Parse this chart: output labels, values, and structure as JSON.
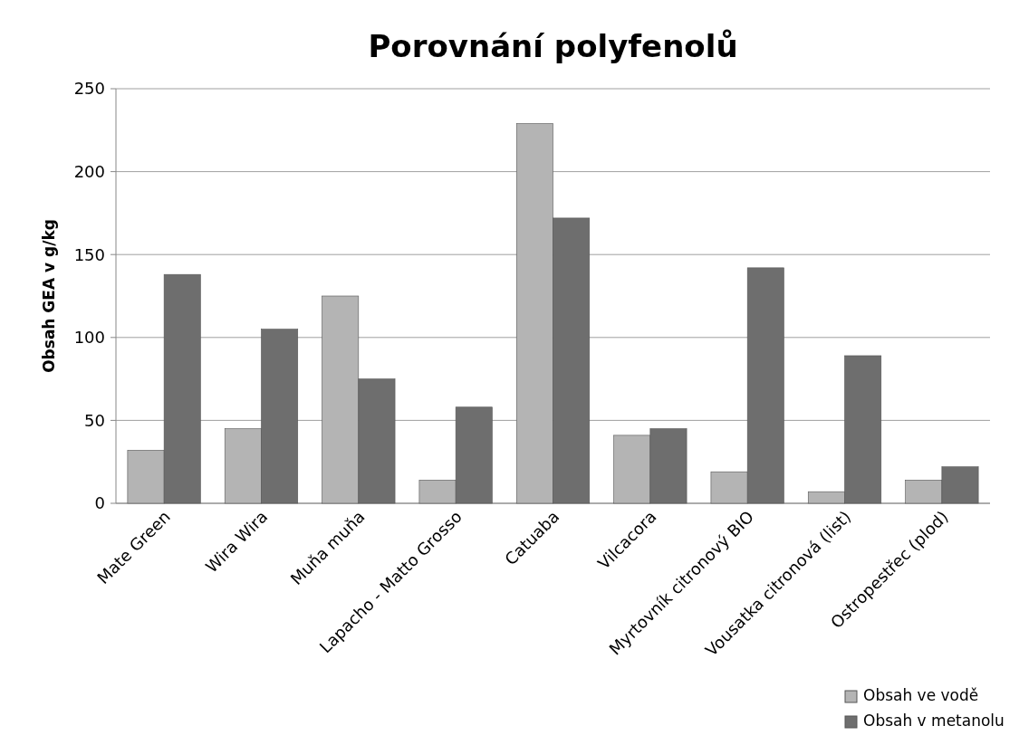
{
  "chart_data": {
    "type": "bar",
    "title": "Porovnání polyfenolů",
    "ylabel": "Obsah GEA v g/kg",
    "categories": [
      "Mate Green",
      "Wira Wira",
      "Muňa muňa",
      "Lapacho - Matto Grosso",
      "Catuaba",
      "Vilcacora",
      "Myrtovník citronový BIO",
      "Vousatka citronová (list)",
      "Ostropestřec (plod)"
    ],
    "series": [
      {
        "name": "Obsah ve vodě",
        "color": "#b4b4b4",
        "values": [
          32,
          45,
          125,
          14,
          229,
          41,
          19,
          7,
          14
        ]
      },
      {
        "name": "Obsah v metanolu",
        "color": "#6e6e6e",
        "values": [
          138,
          105,
          75,
          58,
          172,
          45,
          142,
          89,
          22
        ]
      }
    ],
    "ylim": [
      0,
      250
    ],
    "yticks": [
      0,
      50,
      100,
      150,
      200,
      250
    ],
    "grid": "y",
    "legend": "bottom right"
  }
}
